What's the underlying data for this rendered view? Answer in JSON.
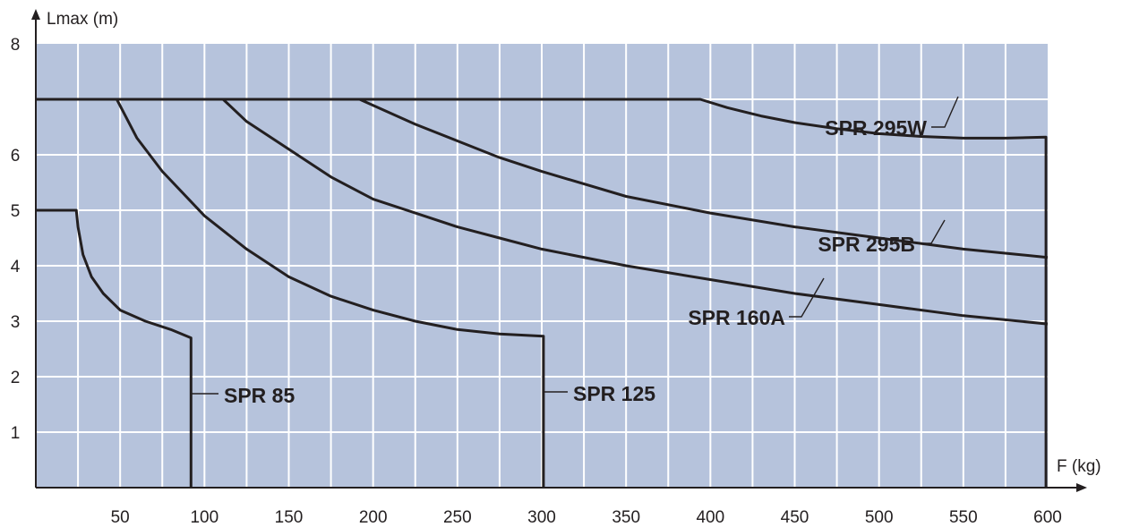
{
  "chart_data": {
    "type": "line",
    "xlabel": "F (kg)",
    "ylabel": "Lmax (m)",
    "xlim": [
      0,
      600
    ],
    "ylim": [
      0,
      8
    ],
    "x_ticks": [
      50,
      100,
      150,
      200,
      250,
      300,
      350,
      400,
      450,
      500,
      550,
      600
    ],
    "y_ticks": [
      1,
      2,
      3,
      4,
      5,
      6,
      8
    ],
    "plot_background": "#b6c3dc",
    "line_color": "#231f20",
    "grid": true,
    "series": [
      {
        "name": "SPR 85",
        "points": [
          [
            0,
            5.0
          ],
          [
            24,
            5.0
          ],
          [
            25,
            4.7
          ],
          [
            28,
            4.2
          ],
          [
            33,
            3.8
          ],
          [
            40,
            3.5
          ],
          [
            50,
            3.2
          ],
          [
            65,
            3.0
          ],
          [
            80,
            2.85
          ],
          [
            92,
            2.7
          ],
          [
            92,
            0
          ]
        ]
      },
      {
        "name": "SPR 125",
        "points": [
          [
            0,
            7.0
          ],
          [
            48,
            7.0
          ],
          [
            60,
            6.3
          ],
          [
            75,
            5.7
          ],
          [
            100,
            4.9
          ],
          [
            125,
            4.3
          ],
          [
            150,
            3.8
          ],
          [
            175,
            3.45
          ],
          [
            200,
            3.2
          ],
          [
            225,
            3.0
          ],
          [
            250,
            2.85
          ],
          [
            275,
            2.77
          ],
          [
            301,
            2.73
          ],
          [
            301,
            0
          ]
        ]
      },
      {
        "name": "SPR 160A",
        "points": [
          [
            0,
            7.0
          ],
          [
            111,
            7.0
          ],
          [
            125,
            6.6
          ],
          [
            150,
            6.1
          ],
          [
            175,
            5.6
          ],
          [
            200,
            5.2
          ],
          [
            225,
            4.95
          ],
          [
            250,
            4.7
          ],
          [
            275,
            4.5
          ],
          [
            300,
            4.3
          ],
          [
            350,
            4.0
          ],
          [
            400,
            3.75
          ],
          [
            450,
            3.5
          ],
          [
            500,
            3.3
          ],
          [
            550,
            3.1
          ],
          [
            600,
            2.95
          ]
        ]
      },
      {
        "name": "SPR 295B",
        "points": [
          [
            0,
            7.0
          ],
          [
            192,
            7.0
          ],
          [
            225,
            6.55
          ],
          [
            250,
            6.25
          ],
          [
            275,
            5.95
          ],
          [
            300,
            5.7
          ],
          [
            350,
            5.25
          ],
          [
            400,
            4.95
          ],
          [
            450,
            4.7
          ],
          [
            500,
            4.5
          ],
          [
            550,
            4.3
          ],
          [
            600,
            4.15
          ]
        ]
      },
      {
        "name": "SPR 295W",
        "points": [
          [
            0,
            7.0
          ],
          [
            394,
            7.0
          ],
          [
            410,
            6.85
          ],
          [
            430,
            6.7
          ],
          [
            450,
            6.58
          ],
          [
            475,
            6.47
          ],
          [
            500,
            6.38
          ],
          [
            525,
            6.33
          ],
          [
            550,
            6.3
          ],
          [
            575,
            6.3
          ],
          [
            599,
            6.32
          ],
          [
            599,
            0
          ]
        ]
      }
    ]
  }
}
